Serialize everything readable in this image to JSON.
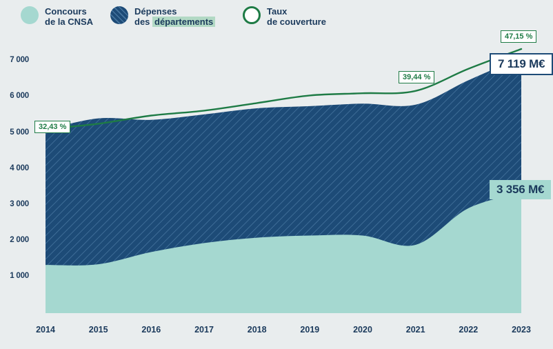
{
  "colors": {
    "bg": "#e9edee",
    "teal": "#a5d8d0",
    "navy": "#1d4b77",
    "text_navy": "#1b3a5c",
    "hatch_line": "#46759f",
    "green": "#1e7b45",
    "highlight": "#b2d9c4"
  },
  "legend": {
    "concours": {
      "line1": "Concours",
      "line2": "de la CNSA"
    },
    "depenses": {
      "line1": "Dépenses",
      "line2_prefix": "des ",
      "line2_highlight": "départements"
    },
    "taux": {
      "line1": "Taux",
      "line2": "de couverture"
    }
  },
  "chart_data": {
    "type": "area",
    "x": [
      "2014",
      "2015",
      "2016",
      "2017",
      "2018",
      "2019",
      "2020",
      "2021",
      "2022",
      "2023"
    ],
    "series": [
      {
        "name": "Concours de la CNSA",
        "unit": "M€",
        "color_key": "teal",
        "values": [
          1340,
          1360,
          1700,
          1950,
          2100,
          2160,
          2160,
          1900,
          2920,
          3356
        ]
      },
      {
        "name": "Dépenses des départements",
        "unit": "M€",
        "color_key": "navy",
        "style": "hatched",
        "values": [
          5100,
          5420,
          5380,
          5530,
          5700,
          5760,
          5830,
          5800,
          6480,
          7119
        ]
      },
      {
        "name": "Taux de couverture",
        "unit": "%",
        "color_key": "green",
        "axis": "secondary",
        "line": true,
        "values": [
          32.43,
          33.4,
          34.9,
          35.8,
          37.2,
          38.6,
          39.0,
          39.44,
          43.5,
          47.15
        ]
      }
    ],
    "y_axis": {
      "range": [
        0,
        7400
      ],
      "ticks": [
        {
          "value": 1000,
          "label": "1 000"
        },
        {
          "value": 2000,
          "label": "2 000"
        },
        {
          "value": 3000,
          "label": "3 000"
        },
        {
          "value": 4000,
          "label": "4 000"
        },
        {
          "value": 5000,
          "label": "5 000"
        },
        {
          "value": 6000,
          "label": "6 000"
        },
        {
          "value": 7000,
          "label": "7 000"
        }
      ]
    },
    "annotations": {
      "taux_start": {
        "text": "32,43 %",
        "x": "2014"
      },
      "taux_mid": {
        "text": "39,44 %",
        "x": "2021"
      },
      "taux_end": {
        "text": "47,15 %",
        "x": "2023"
      },
      "depenses_end": {
        "text": "7 119 M€",
        "x": "2023"
      },
      "concours_end": {
        "text": "3 356 M€",
        "x": "2023"
      }
    }
  }
}
